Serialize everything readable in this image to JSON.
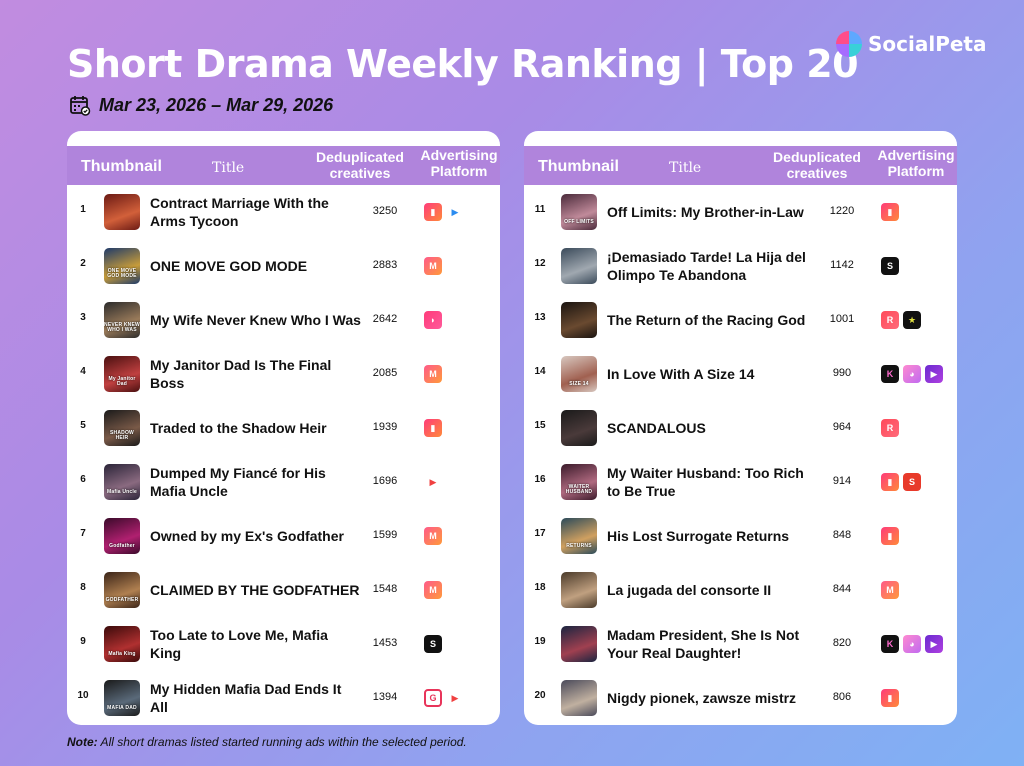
{
  "header": {
    "title": "Short Drama Weekly Ranking | Top 20",
    "date_range": "Mar 23, 2026 – Mar 29, 2026",
    "logo_text": "SocialPeta"
  },
  "columns": {
    "thumbnail": "Thumbnail",
    "title": "Title",
    "dedup": "Deduplicated creatives",
    "platform": "Advertising Platform"
  },
  "footer": {
    "note_label": "Note:",
    "note_text": " All short dramas listed started running ads within the selected period."
  },
  "left_rows": [
    {
      "rank": "1",
      "title": "Contract Marriage With the Arms Tycoon",
      "creatives": "3250",
      "thumb_text": "",
      "thumb": [
        "#6b1a14",
        "#d2603a"
      ],
      "platforms": [
        "dramabox",
        "flickreels"
      ]
    },
    {
      "rank": "2",
      "title": "ONE MOVE GOD MODE",
      "creatives": "2883",
      "thumb_text": "ONE MOVE GOD MODE",
      "thumb": [
        "#1e3a6a",
        "#c79c3a"
      ],
      "platforms": [
        "melolo"
      ]
    },
    {
      "rank": "3",
      "title": "My Wife Never Knew Who I Was",
      "creatives": "2642",
      "thumb_text": "NEVER KNEW WHO I WAS",
      "thumb": [
        "#2b2b2b",
        "#9a7b5a"
      ],
      "platforms": [
        "shortmax"
      ]
    },
    {
      "rank": "4",
      "title": "My Janitor Dad Is The Final Boss",
      "creatives": "2085",
      "thumb_text": "My Janitor Dad",
      "thumb": [
        "#4a1010",
        "#c04040"
      ],
      "platforms": [
        "melolo"
      ]
    },
    {
      "rank": "5",
      "title": "Traded to the Shadow Heir",
      "creatives": "1939",
      "thumb_text": "SHADOW HEIR",
      "thumb": [
        "#1a1a1a",
        "#7a5a48"
      ],
      "platforms": [
        "dramabox"
      ]
    },
    {
      "rank": "6",
      "title": "Dumped My Fiancé for His Mafia Uncle",
      "creatives": "1696",
      "thumb_text": "Mafia Uncle",
      "thumb": [
        "#2a2438",
        "#8a6a80"
      ],
      "platforms": [
        "flickreels_red"
      ]
    },
    {
      "rank": "7",
      "title": "Owned by my Ex's Godfather",
      "creatives": "1599",
      "thumb_text": "Godfather",
      "thumb": [
        "#3a0a2a",
        "#b02070"
      ],
      "platforms": [
        "melolo"
      ]
    },
    {
      "rank": "8",
      "title": "CLAIMED BY THE GODFATHER",
      "creatives": "1548",
      "thumb_text": "GODFATHER",
      "thumb": [
        "#3a2418",
        "#b08050"
      ],
      "platforms": [
        "melolo"
      ]
    },
    {
      "rank": "9",
      "title": "Too Late to Love Me, Mafia King",
      "creatives": "1453",
      "thumb_text": "Mafia King",
      "thumb": [
        "#3a0a0a",
        "#b03030"
      ],
      "platforms": [
        "shorttv"
      ]
    },
    {
      "rank": "10",
      "title": "My Hidden Mafia Dad Ends It All",
      "creatives": "1394",
      "thumb_text": "MAFIA DAD",
      "thumb": [
        "#1a1a1a",
        "#5a6a7a"
      ],
      "platforms": [
        "goodshort",
        "flickreels_red"
      ]
    }
  ],
  "right_rows": [
    {
      "rank": "11",
      "title": "Off Limits: My Brother-in-Law",
      "creatives": "1220",
      "thumb_text": "OFF LIMITS",
      "thumb": [
        "#4a2a3a",
        "#c08a9a"
      ],
      "platforms": [
        "dramabox"
      ]
    },
    {
      "rank": "12",
      "title": "¡Demasiado Tarde! La Hija del Olimpo Te Abandona",
      "creatives": "1142",
      "thumb_text": "",
      "thumb": [
        "#3a4a5a",
        "#a0a8b0"
      ],
      "platforms": [
        "shorttv"
      ]
    },
    {
      "rank": "13",
      "title": "The Return of the Racing God",
      "creatives": "1001",
      "thumb_text": "",
      "thumb": [
        "#1a1410",
        "#6a4a30"
      ],
      "platforms": [
        "reelshort",
        "stardust"
      ]
    },
    {
      "rank": "14",
      "title": "In Love With A Size 14",
      "creatives": "990",
      "thumb_text": "SIZE 14",
      "thumb": [
        "#d8c8c0",
        "#a06050"
      ],
      "platforms": [
        "kalos",
        "dramawave",
        "purple"
      ]
    },
    {
      "rank": "15",
      "title": "SCANDALOUS",
      "creatives": "964",
      "thumb_text": "",
      "thumb": [
        "#1a1a1a",
        "#4a3a3a"
      ],
      "platforms": [
        "reelshort"
      ]
    },
    {
      "rank": "16",
      "title": "My Waiter Husband: Too Rich to Be True",
      "creatives": "914",
      "thumb_text": "WAITER HUSBAND",
      "thumb": [
        "#3a1a2a",
        "#b06a80"
      ],
      "platforms": [
        "dramabox",
        "soda"
      ]
    },
    {
      "rank": "17",
      "title": "His Lost Surrogate Returns",
      "creatives": "848",
      "thumb_text": "RETURNS",
      "thumb": [
        "#2a4a5a",
        "#d0a060"
      ],
      "platforms": [
        "dramabox"
      ]
    },
    {
      "rank": "18",
      "title": "La jugada del consorte II",
      "creatives": "844",
      "thumb_text": "",
      "thumb": [
        "#4a3a2a",
        "#c0a080"
      ],
      "platforms": [
        "melolo"
      ]
    },
    {
      "rank": "19",
      "title": "Madam President, She Is Not Your Real Daughter!",
      "creatives": "820",
      "thumb_text": "",
      "thumb": [
        "#1a2440",
        "#a04050"
      ],
      "platforms": [
        "kalos",
        "dramawave",
        "purple"
      ]
    },
    {
      "rank": "20",
      "title": "Nigdy pionek, zawsze mistrz",
      "creatives": "806",
      "thumb_text": "",
      "thumb": [
        "#4a4a5a",
        "#c0b0a0"
      ],
      "platforms": [
        "dramabox"
      ]
    }
  ]
}
